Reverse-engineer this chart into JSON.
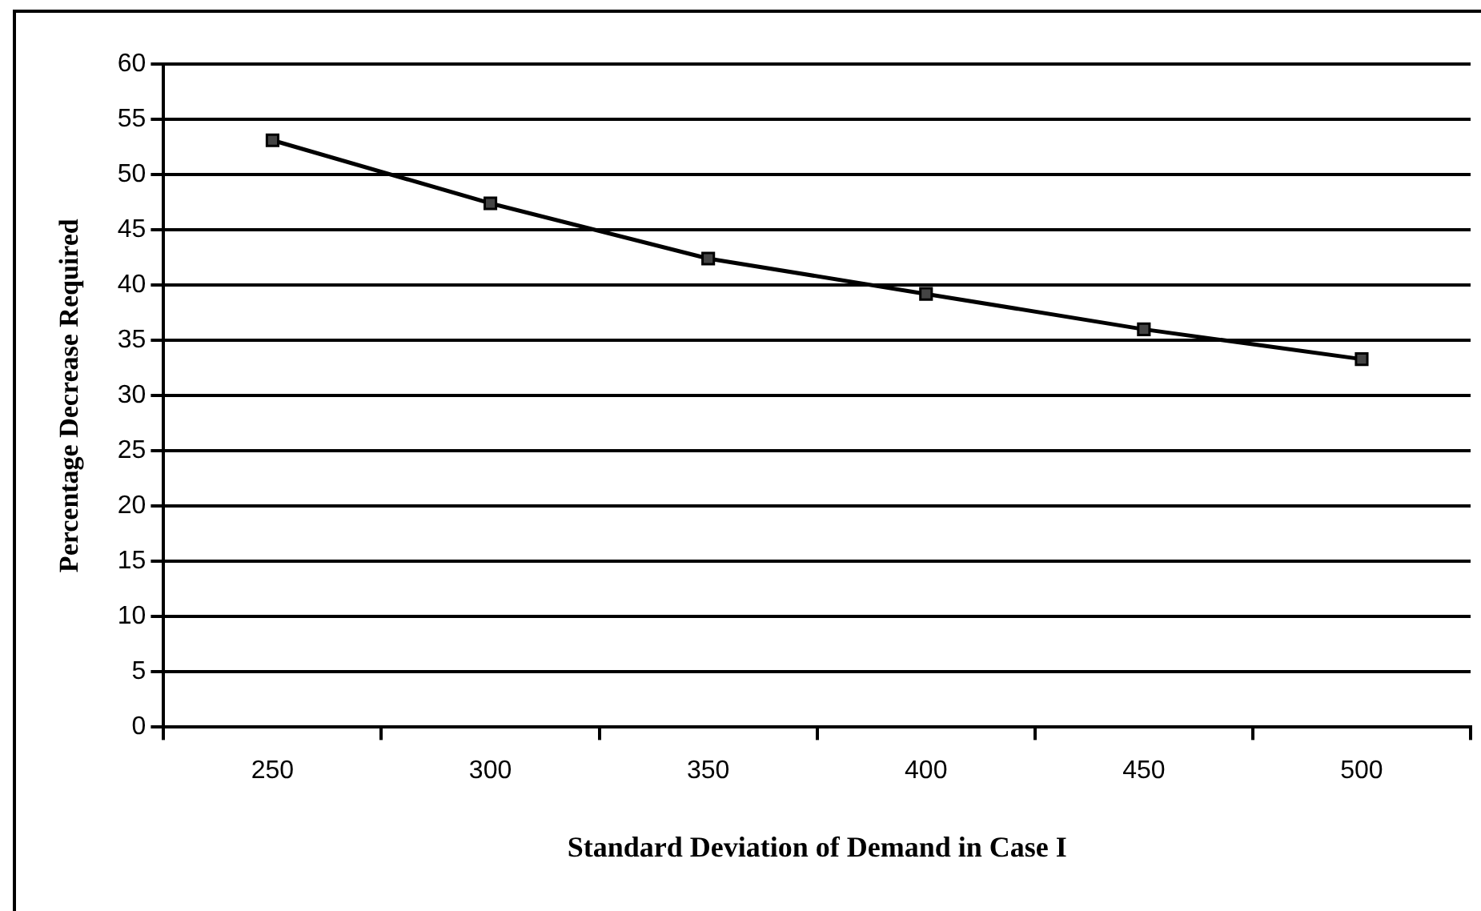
{
  "chart_data": {
    "type": "line",
    "xlabel": "Standard Deviation of Demand in Case I",
    "ylabel": "Percentage Decrease Required",
    "categories": [
      "250",
      "300",
      "350",
      "400",
      "450",
      "500"
    ],
    "series": [
      {
        "color": "#000000",
        "values": [
          53.1,
          47.4,
          42.4,
          39.2,
          36.0,
          33.3
        ]
      }
    ],
    "ylim": [
      0,
      60
    ],
    "yticks": [
      0,
      5,
      10,
      15,
      20,
      25,
      30,
      35,
      40,
      45,
      50,
      55,
      60
    ],
    "grid": "y",
    "legend": false,
    "marker": "square",
    "line_style": "solid"
  }
}
